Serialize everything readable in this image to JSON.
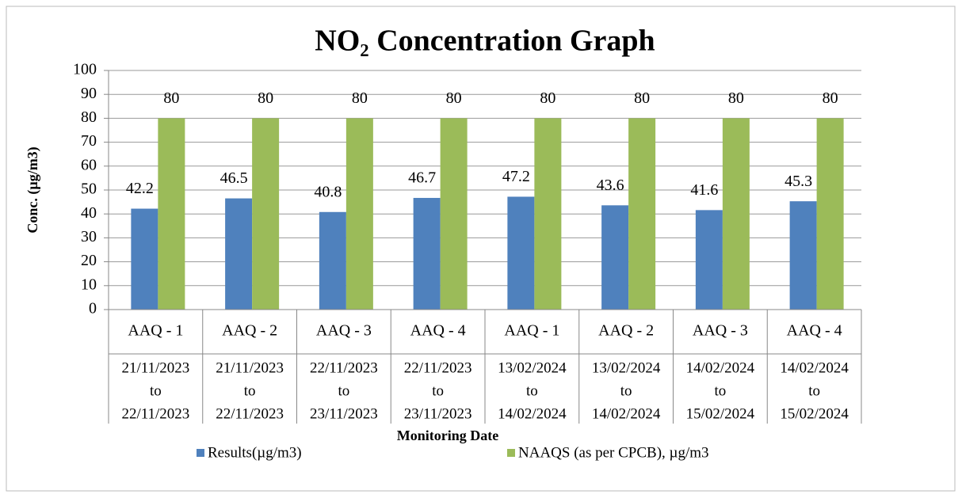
{
  "chart_data": {
    "type": "bar",
    "title": "NO₂ Concentration Graph",
    "y_label": "Conc. (µg/m3)",
    "x_label": "Monitoring Date",
    "categories": [
      "AAQ - 1",
      "AAQ - 2",
      "AAQ - 3",
      "AAQ - 4",
      "AAQ - 1",
      "AAQ - 2",
      "AAQ - 3",
      "AAQ - 4"
    ],
    "date_ranges": [
      [
        "21/11/2023",
        "to",
        "22/11/2023"
      ],
      [
        "21/11/2023",
        "to",
        "22/11/2023"
      ],
      [
        "22/11/2023",
        "to",
        "23/11/2023"
      ],
      [
        "22/11/2023",
        "to",
        "23/11/2023"
      ],
      [
        "13/02/2024",
        "to",
        "14/02/2024"
      ],
      [
        "13/02/2024",
        "to",
        "14/02/2024"
      ],
      [
        "14/02/2024",
        "to",
        "15/02/2024"
      ],
      [
        "14/02/2024",
        "to",
        "15/02/2024"
      ]
    ],
    "series": [
      {
        "name": "Results(µg/m3)",
        "color": "#4f81bd",
        "values": [
          42.2,
          46.5,
          40.8,
          46.7,
          47.2,
          43.6,
          41.6,
          45.3
        ]
      },
      {
        "name": "NAAQS (as per CPCB), µg/m3",
        "color": "#9bbb59",
        "values": [
          80,
          80,
          80,
          80,
          80,
          80,
          80,
          80
        ]
      }
    ],
    "ylim": [
      0,
      100
    ],
    "yticks": [
      0,
      10,
      20,
      30,
      40,
      50,
      60,
      70,
      80,
      90,
      100
    ],
    "grid": true,
    "legend": "bottom"
  }
}
